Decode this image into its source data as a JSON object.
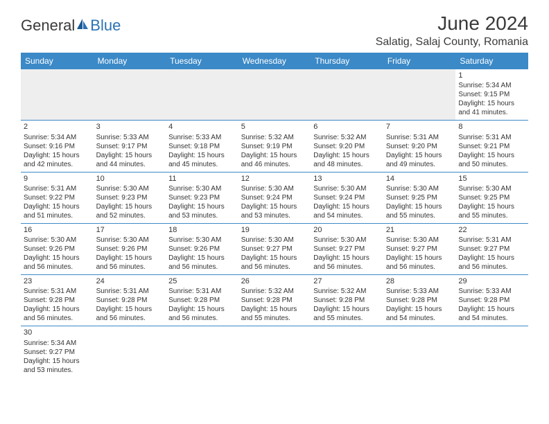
{
  "logo": {
    "text1": "General",
    "text2": "Blue"
  },
  "title": "June 2024",
  "location": "Salatig, Salaj County, Romania",
  "colors": {
    "header_bg": "#3b89c7",
    "header_fg": "#ffffff",
    "border": "#3b89c7",
    "text": "#333333",
    "empty_bg": "#eeeeee",
    "logo_blue": "#2a72b5",
    "page_bg": "#ffffff"
  },
  "typography": {
    "title_fontsize": 28,
    "location_fontsize": 16,
    "header_fontsize": 12,
    "cell_fontsize": 10,
    "daynum_fontsize": 11
  },
  "day_headers": [
    "Sunday",
    "Monday",
    "Tuesday",
    "Wednesday",
    "Thursday",
    "Friday",
    "Saturday"
  ],
  "weeks": [
    [
      null,
      null,
      null,
      null,
      null,
      null,
      {
        "n": "1",
        "sr": "Sunrise: 5:34 AM",
        "ss": "Sunset: 9:15 PM",
        "dl1": "Daylight: 15 hours",
        "dl2": "and 41 minutes."
      }
    ],
    [
      {
        "n": "2",
        "sr": "Sunrise: 5:34 AM",
        "ss": "Sunset: 9:16 PM",
        "dl1": "Daylight: 15 hours",
        "dl2": "and 42 minutes."
      },
      {
        "n": "3",
        "sr": "Sunrise: 5:33 AM",
        "ss": "Sunset: 9:17 PM",
        "dl1": "Daylight: 15 hours",
        "dl2": "and 44 minutes."
      },
      {
        "n": "4",
        "sr": "Sunrise: 5:33 AM",
        "ss": "Sunset: 9:18 PM",
        "dl1": "Daylight: 15 hours",
        "dl2": "and 45 minutes."
      },
      {
        "n": "5",
        "sr": "Sunrise: 5:32 AM",
        "ss": "Sunset: 9:19 PM",
        "dl1": "Daylight: 15 hours",
        "dl2": "and 46 minutes."
      },
      {
        "n": "6",
        "sr": "Sunrise: 5:32 AM",
        "ss": "Sunset: 9:20 PM",
        "dl1": "Daylight: 15 hours",
        "dl2": "and 48 minutes."
      },
      {
        "n": "7",
        "sr": "Sunrise: 5:31 AM",
        "ss": "Sunset: 9:20 PM",
        "dl1": "Daylight: 15 hours",
        "dl2": "and 49 minutes."
      },
      {
        "n": "8",
        "sr": "Sunrise: 5:31 AM",
        "ss": "Sunset: 9:21 PM",
        "dl1": "Daylight: 15 hours",
        "dl2": "and 50 minutes."
      }
    ],
    [
      {
        "n": "9",
        "sr": "Sunrise: 5:31 AM",
        "ss": "Sunset: 9:22 PM",
        "dl1": "Daylight: 15 hours",
        "dl2": "and 51 minutes."
      },
      {
        "n": "10",
        "sr": "Sunrise: 5:30 AM",
        "ss": "Sunset: 9:23 PM",
        "dl1": "Daylight: 15 hours",
        "dl2": "and 52 minutes."
      },
      {
        "n": "11",
        "sr": "Sunrise: 5:30 AM",
        "ss": "Sunset: 9:23 PM",
        "dl1": "Daylight: 15 hours",
        "dl2": "and 53 minutes."
      },
      {
        "n": "12",
        "sr": "Sunrise: 5:30 AM",
        "ss": "Sunset: 9:24 PM",
        "dl1": "Daylight: 15 hours",
        "dl2": "and 53 minutes."
      },
      {
        "n": "13",
        "sr": "Sunrise: 5:30 AM",
        "ss": "Sunset: 9:24 PM",
        "dl1": "Daylight: 15 hours",
        "dl2": "and 54 minutes."
      },
      {
        "n": "14",
        "sr": "Sunrise: 5:30 AM",
        "ss": "Sunset: 9:25 PM",
        "dl1": "Daylight: 15 hours",
        "dl2": "and 55 minutes."
      },
      {
        "n": "15",
        "sr": "Sunrise: 5:30 AM",
        "ss": "Sunset: 9:25 PM",
        "dl1": "Daylight: 15 hours",
        "dl2": "and 55 minutes."
      }
    ],
    [
      {
        "n": "16",
        "sr": "Sunrise: 5:30 AM",
        "ss": "Sunset: 9:26 PM",
        "dl1": "Daylight: 15 hours",
        "dl2": "and 56 minutes."
      },
      {
        "n": "17",
        "sr": "Sunrise: 5:30 AM",
        "ss": "Sunset: 9:26 PM",
        "dl1": "Daylight: 15 hours",
        "dl2": "and 56 minutes."
      },
      {
        "n": "18",
        "sr": "Sunrise: 5:30 AM",
        "ss": "Sunset: 9:26 PM",
        "dl1": "Daylight: 15 hours",
        "dl2": "and 56 minutes."
      },
      {
        "n": "19",
        "sr": "Sunrise: 5:30 AM",
        "ss": "Sunset: 9:27 PM",
        "dl1": "Daylight: 15 hours",
        "dl2": "and 56 minutes."
      },
      {
        "n": "20",
        "sr": "Sunrise: 5:30 AM",
        "ss": "Sunset: 9:27 PM",
        "dl1": "Daylight: 15 hours",
        "dl2": "and 56 minutes."
      },
      {
        "n": "21",
        "sr": "Sunrise: 5:30 AM",
        "ss": "Sunset: 9:27 PM",
        "dl1": "Daylight: 15 hours",
        "dl2": "and 56 minutes."
      },
      {
        "n": "22",
        "sr": "Sunrise: 5:31 AM",
        "ss": "Sunset: 9:27 PM",
        "dl1": "Daylight: 15 hours",
        "dl2": "and 56 minutes."
      }
    ],
    [
      {
        "n": "23",
        "sr": "Sunrise: 5:31 AM",
        "ss": "Sunset: 9:28 PM",
        "dl1": "Daylight: 15 hours",
        "dl2": "and 56 minutes."
      },
      {
        "n": "24",
        "sr": "Sunrise: 5:31 AM",
        "ss": "Sunset: 9:28 PM",
        "dl1": "Daylight: 15 hours",
        "dl2": "and 56 minutes."
      },
      {
        "n": "25",
        "sr": "Sunrise: 5:31 AM",
        "ss": "Sunset: 9:28 PM",
        "dl1": "Daylight: 15 hours",
        "dl2": "and 56 minutes."
      },
      {
        "n": "26",
        "sr": "Sunrise: 5:32 AM",
        "ss": "Sunset: 9:28 PM",
        "dl1": "Daylight: 15 hours",
        "dl2": "and 55 minutes."
      },
      {
        "n": "27",
        "sr": "Sunrise: 5:32 AM",
        "ss": "Sunset: 9:28 PM",
        "dl1": "Daylight: 15 hours",
        "dl2": "and 55 minutes."
      },
      {
        "n": "28",
        "sr": "Sunrise: 5:33 AM",
        "ss": "Sunset: 9:28 PM",
        "dl1": "Daylight: 15 hours",
        "dl2": "and 54 minutes."
      },
      {
        "n": "29",
        "sr": "Sunrise: 5:33 AM",
        "ss": "Sunset: 9:28 PM",
        "dl1": "Daylight: 15 hours",
        "dl2": "and 54 minutes."
      }
    ],
    [
      {
        "n": "30",
        "sr": "Sunrise: 5:34 AM",
        "ss": "Sunset: 9:27 PM",
        "dl1": "Daylight: 15 hours",
        "dl2": "and 53 minutes."
      },
      null,
      null,
      null,
      null,
      null,
      null
    ]
  ]
}
